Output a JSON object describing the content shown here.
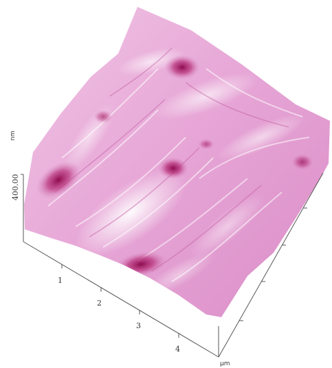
{
  "scan": {
    "z_axis": {
      "unit": "nm",
      "tick_label": "400.00"
    },
    "x_axis": {
      "unit": "µm",
      "ticks": [
        "1",
        "2",
        "3",
        "4"
      ]
    },
    "colors": {
      "surface_light": "#f6d9ef",
      "surface_mid": "#d77fbd",
      "surface_dark": "#a3135e",
      "axis": "#555555"
    }
  }
}
